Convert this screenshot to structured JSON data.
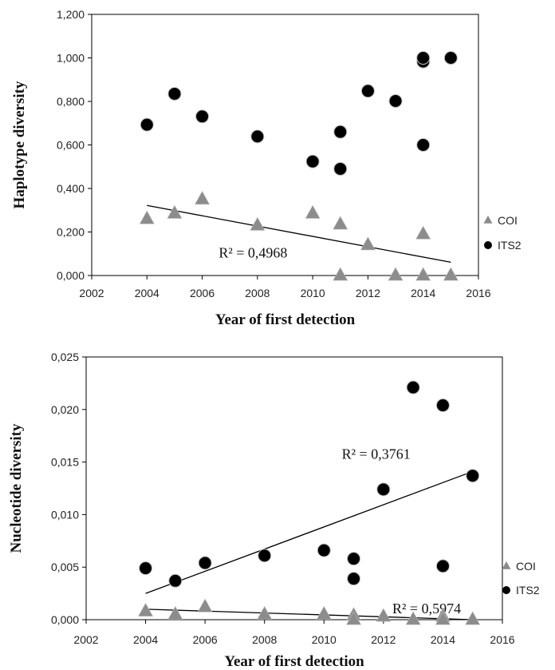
{
  "chart_data": [
    {
      "type": "scatter",
      "xlabel": "Year of first detection",
      "ylabel": "Haplotype diversity",
      "xlim": [
        2002,
        2016
      ],
      "ylim": [
        0,
        1.2
      ],
      "xticks": [
        2002,
        2004,
        2006,
        2008,
        2010,
        2012,
        2014,
        2016
      ],
      "xtick_labels": [
        "2002",
        "2004",
        "2006",
        "2008",
        "2010",
        "2012",
        "2014",
        "2016"
      ],
      "yticks": [
        0,
        0.2,
        0.4,
        0.6,
        0.8,
        1.0,
        1.2
      ],
      "ytick_labels": [
        "0,000",
        "0,200",
        "0,400",
        "0,600",
        "0,800",
        "1,000",
        "1,200"
      ],
      "legend_position": "right",
      "series": [
        {
          "name": "COI",
          "marker": "triangle",
          "color": "#8c8c8c",
          "x": [
            2004,
            2005,
            2006,
            2008,
            2010,
            2011,
            2011,
            2012,
            2013,
            2014,
            2014,
            2015
          ],
          "y": [
            0.26,
            0.285,
            0.35,
            0.23,
            0.285,
            0.235,
            0.0,
            0.14,
            0.0,
            0.0,
            0.19,
            0.0
          ]
        },
        {
          "name": "ITS2",
          "marker": "circle",
          "color": "#000000",
          "x": [
            2004,
            2005,
            2006,
            2008,
            2010,
            2011,
            2011,
            2012,
            2013,
            2014,
            2014,
            2014,
            2015
          ],
          "y": [
            0.693,
            0.835,
            0.731,
            0.639,
            0.524,
            0.66,
            0.49,
            0.848,
            0.802,
            0.983,
            1.0,
            0.6,
            1.0
          ]
        }
      ],
      "trendlines": [
        {
          "series": "COI",
          "x": [
            2004,
            2015
          ],
          "y": [
            0.322,
            0.061
          ],
          "label": "R² = 0,4968",
          "label_anchor": [
            2006.6,
            0.082
          ]
        }
      ]
    },
    {
      "type": "scatter",
      "xlabel": "Year of first detection",
      "ylabel": "Nucleotide diversity",
      "xlim": [
        2002,
        2016
      ],
      "ylim": [
        0,
        0.025
      ],
      "xticks": [
        2002,
        2004,
        2006,
        2008,
        2010,
        2012,
        2014,
        2016
      ],
      "xtick_labels": [
        "2002",
        "2004",
        "2006",
        "2008",
        "2010",
        "2012",
        "2014",
        "2016"
      ],
      "yticks": [
        0,
        0.005,
        0.01,
        0.015,
        0.02,
        0.025
      ],
      "ytick_labels": [
        "0,000",
        "0,005",
        "0,010",
        "0,015",
        "0,020",
        "0,025"
      ],
      "legend_position": "right",
      "series": [
        {
          "name": "COI",
          "marker": "triangle",
          "color": "#8c8c8c",
          "x": [
            2004,
            2005,
            2006,
            2008,
            2010,
            2011,
            2011,
            2012,
            2013,
            2014,
            2014,
            2015
          ],
          "y": [
            0.0008,
            0.0005,
            0.0012,
            0.0005,
            0.0005,
            0.0004,
            0.0,
            0.0003,
            0.0,
            0.0003,
            0.0,
            0.0
          ]
        },
        {
          "name": "ITS2",
          "marker": "circle",
          "color": "#000000",
          "x": [
            2004,
            2005,
            2006,
            2008,
            2010,
            2011,
            2011,
            2012,
            2013,
            2014,
            2014,
            2015
          ],
          "y": [
            0.0049,
            0.0037,
            0.0054,
            0.0061,
            0.0066,
            0.0058,
            0.0039,
            0.0124,
            0.0221,
            0.0204,
            0.0051,
            0.0137
          ]
        }
      ],
      "trendlines": [
        {
          "series": "ITS2",
          "x": [
            2004,
            2015
          ],
          "y": [
            0.0025,
            0.0141
          ],
          "label": "R² = 0,3761",
          "label_anchor": [
            2010.6,
            0.0153
          ]
        },
        {
          "series": "COI",
          "x": [
            2004,
            2015
          ],
          "y": [
            0.001,
            0.0
          ],
          "label": "R² = 0,5974",
          "label_anchor": [
            2012.3,
            0.0006
          ]
        }
      ]
    }
  ]
}
